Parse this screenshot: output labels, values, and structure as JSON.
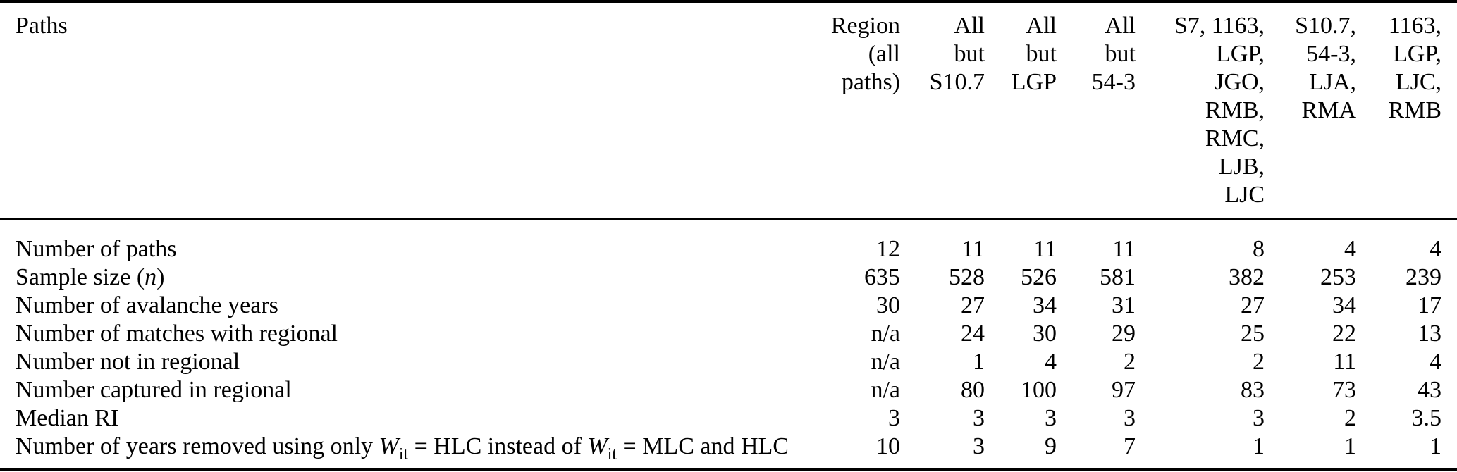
{
  "table": {
    "corner_label": "Paths",
    "columns": [
      {
        "lines": [
          "Region",
          "(all",
          "paths)"
        ]
      },
      {
        "lines": [
          "All",
          "but",
          "S10.7"
        ]
      },
      {
        "lines": [
          "All",
          "but",
          "LGP"
        ]
      },
      {
        "lines": [
          "All",
          "but",
          "54-3"
        ]
      },
      {
        "lines": [
          "S7, 1163,",
          "LGP,",
          "JGO,",
          "RMB,",
          "RMC,",
          "LJB,",
          "LJC"
        ]
      },
      {
        "lines": [
          "S10.7,",
          "54-3,",
          "LJA,",
          "RMA"
        ]
      },
      {
        "lines": [
          "1163,",
          "LGP,",
          "LJC,",
          "RMB"
        ]
      }
    ],
    "rows": [
      {
        "label": [
          {
            "text": "Number of paths"
          }
        ],
        "values": [
          "12",
          "11",
          "11",
          "11",
          "8",
          "4",
          "4"
        ]
      },
      {
        "label": [
          {
            "text": "Sample size ("
          },
          {
            "text": "n",
            "italic": true
          },
          {
            "text": ")"
          }
        ],
        "values": [
          "635",
          "528",
          "526",
          "581",
          "382",
          "253",
          "239"
        ]
      },
      {
        "label": [
          {
            "text": "Number of avalanche years"
          }
        ],
        "values": [
          "30",
          "27",
          "34",
          "31",
          "27",
          "34",
          "17"
        ]
      },
      {
        "label": [
          {
            "text": "Number of matches with regional"
          }
        ],
        "values": [
          "n/a",
          "24",
          "30",
          "29",
          "25",
          "22",
          "13"
        ]
      },
      {
        "label": [
          {
            "text": "Number not in regional"
          }
        ],
        "values": [
          "n/a",
          "1",
          "4",
          "2",
          "2",
          "11",
          "4"
        ]
      },
      {
        "label": [
          {
            "text": "Number captured in regional"
          }
        ],
        "values": [
          "n/a",
          "80",
          "100",
          "97",
          "83",
          "73",
          "43"
        ]
      },
      {
        "label": [
          {
            "text": "Median RI"
          }
        ],
        "values": [
          "3",
          "3",
          "3",
          "3",
          "3",
          "2",
          "3.5"
        ]
      },
      {
        "label": [
          {
            "text": "Number of years removed using only "
          },
          {
            "text": "W",
            "italic": true
          },
          {
            "text": "it",
            "sub": true
          },
          {
            "text": " = "
          },
          {
            "text": "HLC instead of "
          },
          {
            "text": "W",
            "italic": true
          },
          {
            "text": "it",
            "sub": true
          },
          {
            "text": " = "
          },
          {
            "text": "MLC and HLC"
          }
        ],
        "values": [
          "10",
          "3",
          "9",
          "7",
          "1",
          "1",
          "1"
        ]
      }
    ]
  }
}
